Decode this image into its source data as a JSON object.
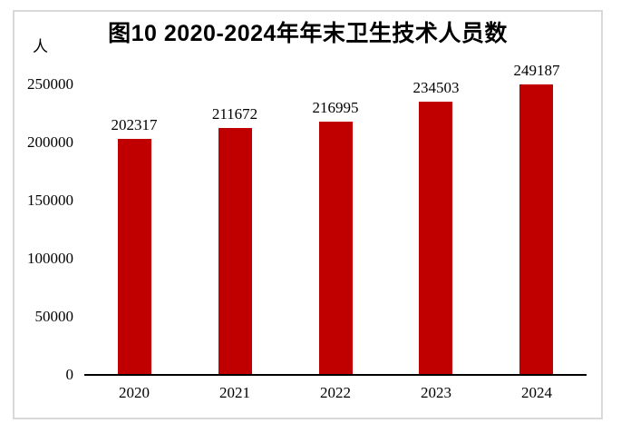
{
  "chart": {
    "title": "图10 2020-2024年年末卫生技术人员数",
    "unit_label": "人"
  },
  "chart_data": {
    "type": "bar",
    "title": "图10 2020-2024年年末卫生技术人员数",
    "categories": [
      "2020",
      "2021",
      "2022",
      "2023",
      "2024"
    ],
    "values": [
      202317,
      211672,
      216995,
      234503,
      249187
    ],
    "data_labels": [
      202317,
      211672,
      216995,
      234503,
      249187
    ],
    "xlabel": "",
    "ylabel": "人",
    "ylim": [
      0,
      250000
    ],
    "yticks": [
      0,
      50000,
      100000,
      150000,
      200000,
      250000
    ],
    "grid": false,
    "legend_position": "none",
    "bar_color": "#c00000",
    "axis_color": "#000000",
    "frame_color": "#d9d9d9"
  }
}
